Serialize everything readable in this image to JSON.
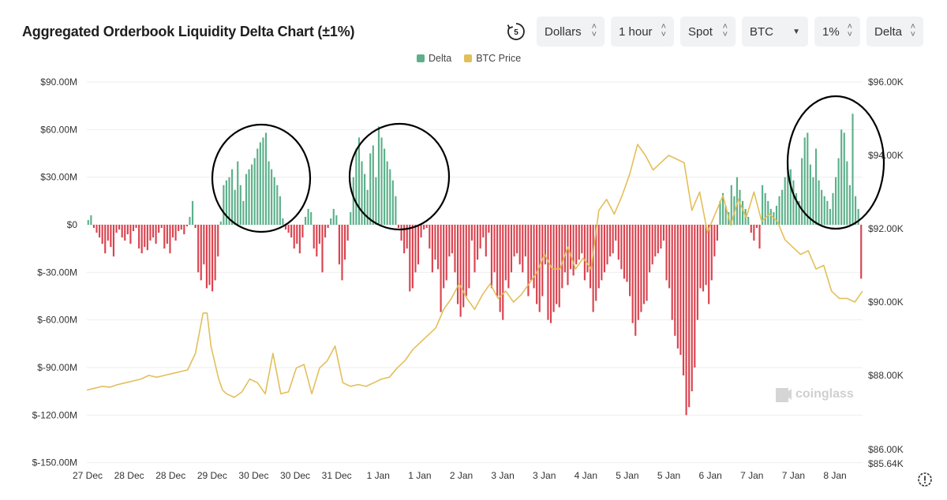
{
  "title": "Aggregated Orderbook Liquidity Delta Chart (±1%)",
  "controls": {
    "refresh_icon": "timer-refresh-icon",
    "refresh_badge": "5",
    "unit": "Dollars",
    "interval": "1 hour",
    "market": "Spot",
    "coin": "BTC",
    "range": "1%",
    "mode": "Delta"
  },
  "legend": {
    "delta_label": "Delta",
    "price_label": "BTC Price"
  },
  "colors": {
    "positive": "#5cb08a",
    "negative": "#d9434f",
    "price": "#e2bf5a",
    "grid": "#eeeeee"
  },
  "watermark": "coinglass",
  "chart_data": {
    "type": "bar",
    "x_tick_labels": [
      "27 Dec",
      "28 Dec",
      "28 Dec",
      "29 Dec",
      "30 Dec",
      "30 Dec",
      "31 Dec",
      "1 Jan",
      "1 Jan",
      "2 Jan",
      "3 Jan",
      "3 Jan",
      "4 Jan",
      "5 Jan",
      "5 Jan",
      "6 Jan",
      "7 Jan",
      "7 Jan",
      "8 Jan"
    ],
    "y_left_ticks": [
      "$90.00M",
      "$60.00M",
      "$30.00M",
      "$0",
      "$-30.00M",
      "$-60.00M",
      "$-90.00M",
      "$-120.00M",
      "$-150.00M"
    ],
    "y_right_ticks": [
      "$96.00K",
      "$94.00K",
      "$92.00K",
      "$90.00K",
      "$88.00K",
      "$86.00K",
      "$85.64K"
    ],
    "ylim_left": [
      -150,
      90
    ],
    "ylim_right": [
      85.64,
      96.0
    ],
    "series": [
      {
        "name": "Delta",
        "unit": "M USD",
        "values": [
          3,
          6,
          -2,
          -5,
          -8,
          -12,
          -18,
          -10,
          -14,
          -20,
          -5,
          -3,
          -8,
          -10,
          -6,
          -12,
          -4,
          -2,
          -15,
          -18,
          -14,
          -16,
          -10,
          -8,
          -12,
          -5,
          -2,
          -15,
          -12,
          -18,
          -8,
          -10,
          -4,
          -3,
          -6,
          -1,
          5,
          15,
          -2,
          -30,
          -35,
          -25,
          -40,
          -38,
          -42,
          -35,
          -20,
          2,
          25,
          28,
          30,
          35,
          22,
          40,
          25,
          15,
          32,
          35,
          38,
          42,
          48,
          52,
          55,
          58,
          40,
          35,
          30,
          25,
          18,
          4,
          -3,
          -5,
          -8,
          -15,
          -12,
          -18,
          -8,
          5,
          10,
          8,
          -15,
          -20,
          -12,
          -30,
          -8,
          -2,
          4,
          10,
          6,
          -25,
          -35,
          -22,
          -10,
          8,
          30,
          48,
          55,
          40,
          32,
          22,
          45,
          50,
          30,
          62,
          55,
          48,
          40,
          35,
          28,
          18,
          -2,
          -10,
          -18,
          -15,
          -42,
          -40,
          -30,
          -25,
          -8,
          -3,
          -2,
          -15,
          -30,
          -22,
          -28,
          -55,
          -40,
          -35,
          -20,
          -18,
          -30,
          -50,
          -58,
          -52,
          -45,
          -40,
          -10,
          -30,
          -22,
          -15,
          -8,
          -20,
          -5,
          -40,
          -30,
          -45,
          -55,
          -60,
          -35,
          -40,
          -30,
          -20,
          -18,
          -25,
          -30,
          -20,
          -45,
          -35,
          -40,
          -50,
          -55,
          -45,
          -25,
          -60,
          -62,
          -55,
          -50,
          -52,
          -40,
          -30,
          -38,
          -28,
          -32,
          -25,
          -22,
          -18,
          -35,
          -30,
          -40,
          -55,
          -48,
          -40,
          -35,
          -30,
          -25,
          -20,
          -18,
          -10,
          -22,
          -28,
          -34,
          -36,
          -45,
          -62,
          -70,
          -60,
          -55,
          -50,
          -48,
          -30,
          -25,
          -20,
          -18,
          -15,
          -10,
          -35,
          -40,
          -60,
          -70,
          -78,
          -82,
          -95,
          -120,
          -115,
          -105,
          -90,
          -60,
          -40,
          -42,
          -38,
          -50,
          -35,
          -20,
          -10,
          15,
          20,
          12,
          8,
          25,
          18,
          30,
          22,
          15,
          10,
          5,
          -5,
          -10,
          -2,
          -15,
          25,
          20,
          15,
          10,
          8,
          12,
          18,
          22,
          30,
          40,
          35,
          28,
          20,
          15,
          42,
          55,
          58,
          38,
          30,
          48,
          28,
          22,
          18,
          15,
          10,
          20,
          30,
          42,
          60,
          58,
          40,
          25,
          70,
          18,
          10,
          -34
        ],
        "colors_by_sign": {
          "positive": "#5cb08a",
          "negative": "#d9434f"
        }
      },
      {
        "name": "BTC Price",
        "unit": "K USD",
        "x": [
          0,
          0.01,
          0.02,
          0.03,
          0.04,
          0.05,
          0.06,
          0.07,
          0.08,
          0.09,
          0.1,
          0.11,
          0.12,
          0.13,
          0.14,
          0.15,
          0.155,
          0.16,
          0.17,
          0.175,
          0.18,
          0.19,
          0.2,
          0.21,
          0.22,
          0.23,
          0.24,
          0.25,
          0.26,
          0.27,
          0.28,
          0.29,
          0.3,
          0.31,
          0.32,
          0.33,
          0.34,
          0.35,
          0.36,
          0.37,
          0.38,
          0.39,
          0.4,
          0.41,
          0.42,
          0.43,
          0.44,
          0.45,
          0.46,
          0.47,
          0.48,
          0.49,
          0.5,
          0.51,
          0.52,
          0.53,
          0.54,
          0.55,
          0.56,
          0.57,
          0.58,
          0.59,
          0.6,
          0.61,
          0.62,
          0.63,
          0.64,
          0.65,
          0.66,
          0.67,
          0.68,
          0.69,
          0.7,
          0.71,
          0.72,
          0.73,
          0.74,
          0.75,
          0.76,
          0.77,
          0.78,
          0.79,
          0.8,
          0.81,
          0.82,
          0.83,
          0.84,
          0.85,
          0.86,
          0.87,
          0.88,
          0.89,
          0.9,
          0.91,
          0.92,
          0.93,
          0.94,
          0.95,
          0.96,
          0.97,
          0.98,
          0.99,
          1.0
        ],
        "values": [
          87.6,
          87.65,
          87.7,
          87.68,
          87.75,
          87.8,
          87.85,
          87.9,
          88.0,
          87.95,
          88.0,
          88.05,
          88.1,
          88.15,
          88.6,
          89.7,
          89.7,
          88.8,
          87.9,
          87.6,
          87.5,
          87.4,
          87.55,
          87.9,
          87.8,
          87.5,
          88.6,
          87.5,
          87.55,
          88.2,
          88.3,
          87.5,
          88.2,
          88.4,
          88.8,
          87.8,
          87.7,
          87.75,
          87.7,
          87.8,
          87.9,
          87.95,
          88.2,
          88.4,
          88.7,
          88.9,
          89.1,
          89.3,
          89.8,
          90.1,
          90.5,
          90.1,
          89.8,
          90.2,
          90.5,
          90.1,
          90.3,
          90.0,
          90.2,
          90.5,
          90.8,
          91.3,
          90.9,
          90.9,
          91.5,
          90.9,
          91.2,
          90.9,
          92.5,
          92.8,
          92.4,
          92.9,
          93.5,
          94.3,
          94.0,
          93.6,
          93.8,
          94.0,
          93.9,
          93.8,
          92.5,
          93.0,
          91.9,
          92.4,
          92.9,
          92.1,
          92.8,
          92.3,
          93.0,
          92.2,
          92.4,
          92.2,
          91.7,
          91.5,
          91.3,
          91.4,
          90.9,
          91.0,
          90.3,
          90.1,
          90.1,
          90.0,
          90.3
        ]
      }
    ],
    "annotations": [
      "circle",
      "circle",
      "circle"
    ]
  }
}
